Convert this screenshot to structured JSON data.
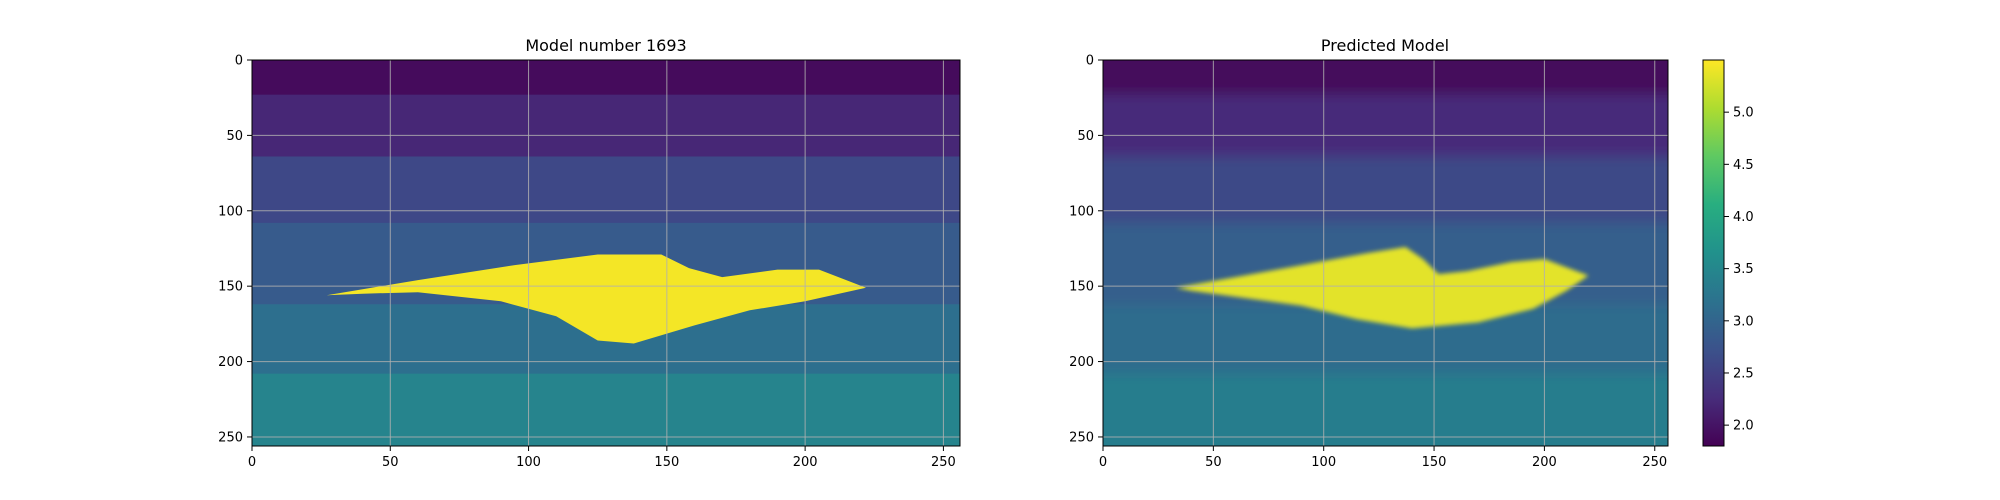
{
  "chart_data": [
    {
      "type": "heatmap",
      "title": "Model number 1693",
      "xlabel": "",
      "ylabel": "",
      "xlim": [
        0,
        256
      ],
      "ylim": [
        256,
        0
      ],
      "x_ticks": [
        "0",
        "50",
        "100",
        "150",
        "200",
        "250"
      ],
      "y_ticks": [
        "0",
        "50",
        "100",
        "150",
        "200",
        "250"
      ],
      "grid": true,
      "colormap": "viridis",
      "background_layers": [
        {
          "depth_from": 0,
          "depth_to": 23,
          "value": 1.9
        },
        {
          "depth_from": 23,
          "depth_to": 64,
          "value": 2.2
        },
        {
          "depth_from": 64,
          "depth_to": 108,
          "value": 2.6
        },
        {
          "depth_from": 108,
          "depth_to": 162,
          "value": 2.85
        },
        {
          "depth_from": 162,
          "depth_to": 208,
          "value": 3.15
        },
        {
          "depth_from": 208,
          "depth_to": 256,
          "value": 3.45
        }
      ],
      "anomaly": {
        "value": 5.45,
        "outline": [
          [
            27,
            156
          ],
          [
            60,
            146
          ],
          [
            95,
            136
          ],
          [
            125,
            129
          ],
          [
            148,
            129
          ],
          [
            158,
            138
          ],
          [
            170,
            144
          ],
          [
            190,
            139
          ],
          [
            205,
            139
          ],
          [
            222,
            151
          ],
          [
            200,
            160
          ],
          [
            180,
            166
          ],
          [
            160,
            176
          ],
          [
            138,
            188
          ],
          [
            125,
            186
          ],
          [
            110,
            170
          ],
          [
            90,
            160
          ],
          [
            60,
            154
          ],
          [
            40,
            155
          ]
        ]
      }
    },
    {
      "type": "heatmap",
      "title": "Predicted Model",
      "xlabel": "",
      "ylabel": "",
      "xlim": [
        0,
        256
      ],
      "ylim": [
        256,
        0
      ],
      "x_ticks": [
        "0",
        "50",
        "100",
        "150",
        "200",
        "250"
      ],
      "y_ticks": [
        "0",
        "50",
        "100",
        "150",
        "200",
        "250"
      ],
      "grid": true,
      "colormap": "viridis",
      "background_layers": [
        {
          "depth_from": 0,
          "depth_to": 23,
          "value": 1.9
        },
        {
          "depth_from": 23,
          "depth_to": 64,
          "value": 2.25
        },
        {
          "depth_from": 64,
          "depth_to": 108,
          "value": 2.6
        },
        {
          "depth_from": 108,
          "depth_to": 162,
          "value": 2.9
        },
        {
          "depth_from": 162,
          "depth_to": 208,
          "value": 3.1
        },
        {
          "depth_from": 208,
          "depth_to": 256,
          "value": 3.35
        }
      ],
      "anomaly": {
        "value": 5.35,
        "outline": [
          [
            33,
            151
          ],
          [
            60,
            144
          ],
          [
            90,
            136
          ],
          [
            120,
            128
          ],
          [
            137,
            124
          ],
          [
            145,
            132
          ],
          [
            152,
            142
          ],
          [
            165,
            140
          ],
          [
            185,
            134
          ],
          [
            200,
            132
          ],
          [
            220,
            143
          ],
          [
            210,
            153
          ],
          [
            195,
            165
          ],
          [
            170,
            174
          ],
          [
            140,
            178
          ],
          [
            115,
            172
          ],
          [
            90,
            163
          ],
          [
            60,
            157
          ],
          [
            40,
            153
          ]
        ]
      }
    }
  ],
  "colorbar": {
    "colormap": "viridis",
    "vmin": 1.8,
    "vmax": 5.5,
    "ticks": [
      "2.0",
      "2.5",
      "3.0",
      "3.5",
      "4.0",
      "4.5",
      "5.0"
    ]
  }
}
